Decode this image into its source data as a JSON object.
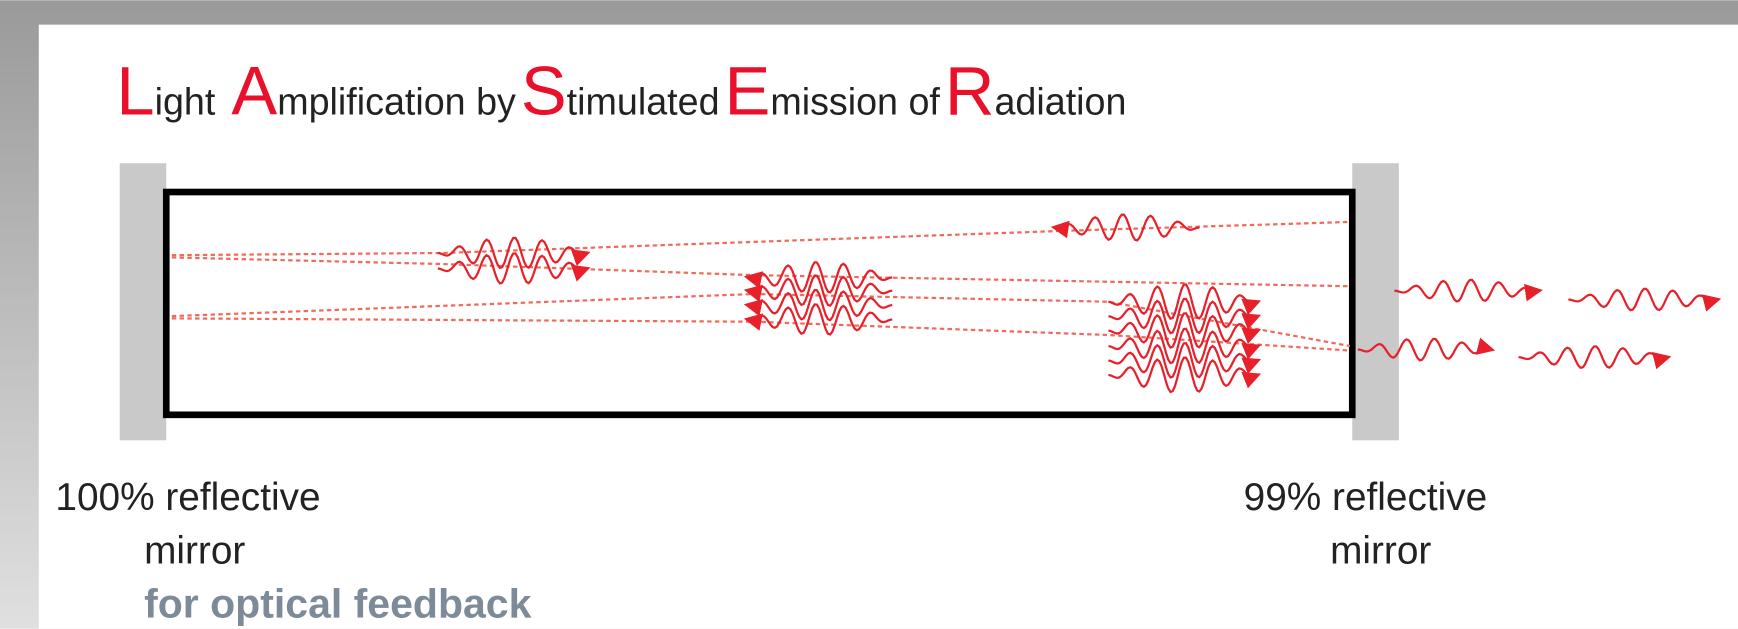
{
  "title": {
    "words": [
      {
        "initial": "L",
        "rest": "ight"
      },
      {
        "initial": "A",
        "rest": "mplification by"
      },
      {
        "initial": "S",
        "rest": "timulated"
      },
      {
        "initial": "E",
        "rest": "mission of"
      },
      {
        "initial": "R",
        "rest": "adiation"
      }
    ]
  },
  "left_mirror": {
    "lines": [
      "100% reflective",
      "mirror"
    ],
    "note": "for optical feedback"
  },
  "right_mirror": {
    "lines": [
      "99% reflective",
      "mirror"
    ]
  }
}
